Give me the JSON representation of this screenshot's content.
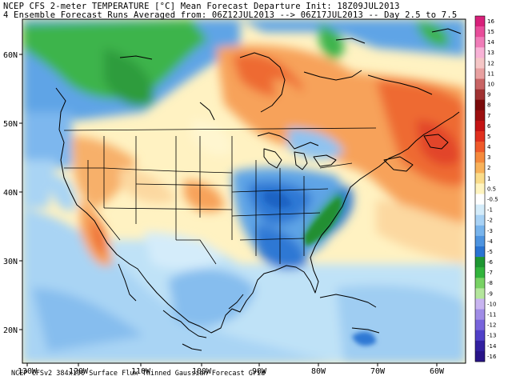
{
  "title_line1": "NCEP CFS 2-meter TEMPERATURE [°C] Mean Forecast Departure Init: 18Z09JUL2013",
  "title_line2": "4 Ensemble Forecast Runs Averaged from: 06Z12JUL2013 --> 06Z17JUL2013 -- Day 2.5 to 7.5",
  "footer": "NCEP CFSv2 384x190 Surface Flux Thinned Gaussian Forecast Grid",
  "lon_labels": [
    "130W",
    "120W",
    "110W",
    "100W",
    "90W",
    "80W",
    "70W",
    "60W"
  ],
  "lat_labels": [
    "60N",
    "50N",
    "40N",
    "30N",
    "20N"
  ],
  "colorbar": {
    "labels": [
      "16",
      "15",
      "14",
      "13",
      "12",
      "11",
      "10",
      "9",
      "8",
      "7",
      "6",
      "5",
      "4",
      "3",
      "2",
      "1",
      "0.5",
      "-0.5",
      "-1",
      "-2",
      "-3",
      "-4",
      "-5",
      "-6",
      "-7",
      "-8",
      "-9",
      "-10",
      "-11",
      "-12",
      "-13",
      "-14",
      "-16"
    ],
    "colors": [
      "#d8207a",
      "#e84d9a",
      "#f07cb8",
      "#f8b2d6",
      "#f5c6c6",
      "#e8a0a0",
      "#c86464",
      "#a03232",
      "#7a0a0a",
      "#9c0f0f",
      "#c41414",
      "#e0301e",
      "#ef5a2a",
      "#f58a3c",
      "#f8b25a",
      "#fadc8a",
      "#fff4c0",
      "#ffffff",
      "#d4ecfa",
      "#a8d2f5",
      "#78b4ec",
      "#4e94e0",
      "#2a74d2",
      "#1e9632",
      "#32b43c",
      "#78d264",
      "#b4e69c",
      "#c8b4f0",
      "#a08ce6",
      "#7864dc",
      "#5040c8",
      "#3220a0",
      "#281488"
    ]
  }
}
